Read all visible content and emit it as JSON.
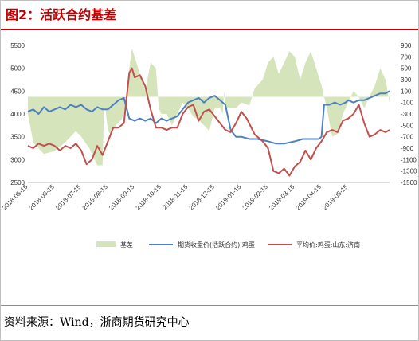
{
  "title": "图2：活跃合约基差",
  "source": "资料来源：Wind，浙商期货研究中心",
  "colors": {
    "title": "#c00000",
    "basis": "#d6e4bc",
    "futures": "#4f81bd",
    "spot": "#c0504d"
  },
  "chart_data": {
    "type": "line",
    "x_labels": [
      "2018-05-15",
      "2018-06-15",
      "2018-07-15",
      "2018-08-15",
      "2018-09-15",
      "2018-10-15",
      "2018-11-15",
      "2018-12-15",
      "2019-01-15",
      "2019-02-15",
      "2019-03-15",
      "2019-04-15",
      "2019-05-15"
    ],
    "x_range": [
      0,
      13.55
    ],
    "left_axis": {
      "min": 2500,
      "max": 5500,
      "ticks": [
        2500,
        3000,
        3500,
        4000,
        4500,
        5000,
        5500
      ]
    },
    "right_axis": {
      "min": -1500,
      "max": 900,
      "ticks": [
        -1500,
        -1300,
        -1100,
        -900,
        -700,
        -500,
        -300,
        -100,
        100,
        300,
        500,
        700,
        900
      ]
    },
    "series": [
      {
        "name": "基差",
        "type": "area",
        "axis": "right",
        "x": [
          0.0,
          0.2,
          0.4,
          0.6,
          1.0,
          1.4,
          1.8,
          2.0,
          2.3,
          2.6,
          2.8,
          2.85,
          2.9,
          3.0,
          3.1,
          3.3,
          3.5,
          3.7,
          3.8,
          3.9,
          4.0,
          4.2,
          4.4,
          4.6,
          4.8,
          4.9,
          5.0,
          5.2,
          5.4,
          5.6,
          5.8,
          6.0,
          6.2,
          6.4,
          6.6,
          6.8,
          7.0,
          7.2,
          7.3,
          7.35,
          7.4,
          7.6,
          7.8,
          8.0,
          8.3,
          8.5,
          8.6,
          8.8,
          9.0,
          9.2,
          9.4,
          9.6,
          9.8,
          10.0,
          10.2,
          10.4,
          10.6,
          10.8,
          11.0,
          11.2,
          11.4,
          11.6,
          11.8,
          12.0,
          12.2,
          12.4,
          12.6,
          12.8,
          13.0,
          13.2,
          13.4,
          13.55
        ],
        "y": [
          -300,
          -800,
          -900,
          -1000,
          -950,
          -800,
          -600,
          -700,
          -900,
          -1200,
          -1200,
          -200,
          -200,
          -600,
          -650,
          -500,
          -400,
          -200,
          500,
          850,
          700,
          400,
          100,
          600,
          500,
          -200,
          -300,
          -300,
          -500,
          -300,
          -100,
          -200,
          -350,
          -400,
          -500,
          -600,
          -200,
          -200,
          -300,
          100,
          -200,
          -200,
          -200,
          -100,
          -150,
          150,
          200,
          300,
          600,
          700,
          400,
          600,
          800,
          700,
          300,
          600,
          800,
          500,
          200,
          -200,
          -700,
          -650,
          -300,
          -100,
          100,
          0,
          -200,
          0,
          200,
          500,
          300,
          -100
        ]
      },
      {
        "name": "期货收盘价(活跃合约):鸡蛋",
        "type": "line",
        "axis": "left",
        "x": [
          0.0,
          0.2,
          0.4,
          0.6,
          0.8,
          1.0,
          1.2,
          1.4,
          1.6,
          1.8,
          2.0,
          2.2,
          2.4,
          2.6,
          2.8,
          3.0,
          3.2,
          3.4,
          3.6,
          3.8,
          4.0,
          4.2,
          4.4,
          4.6,
          4.8,
          5.0,
          5.2,
          5.4,
          5.6,
          5.8,
          6.0,
          6.2,
          6.4,
          6.6,
          6.8,
          7.0,
          7.2,
          7.4,
          7.6,
          7.8,
          8.0,
          8.3,
          8.6,
          9.0,
          9.3,
          9.6,
          10.0,
          10.3,
          10.6,
          10.9,
          11.0,
          11.1,
          11.3,
          11.5,
          11.7,
          11.9,
          12.0,
          12.2,
          12.4,
          12.6,
          12.8,
          13.0,
          13.2,
          13.4,
          13.55
        ],
        "y": [
          4050,
          4100,
          4000,
          4150,
          4050,
          4100,
          4150,
          4100,
          4200,
          4150,
          4200,
          4100,
          4050,
          4150,
          4100,
          4100,
          4200,
          4300,
          4350,
          3900,
          3850,
          3900,
          3850,
          3900,
          3800,
          3900,
          3850,
          3900,
          3950,
          4100,
          4250,
          4300,
          4350,
          4250,
          4350,
          4400,
          4300,
          4200,
          3650,
          3500,
          3500,
          3450,
          3450,
          3400,
          3350,
          3350,
          3400,
          3450,
          3450,
          3450,
          3500,
          4200,
          4200,
          4250,
          4200,
          4250,
          4300,
          4250,
          4300,
          4300,
          4350,
          4400,
          4450,
          4450,
          4500
        ]
      },
      {
        "name": "平均价:鸡蛋:山东:济南",
        "type": "line",
        "axis": "left",
        "x": [
          0.0,
          0.2,
          0.4,
          0.6,
          0.8,
          1.0,
          1.2,
          1.4,
          1.6,
          1.8,
          2.0,
          2.2,
          2.4,
          2.6,
          2.8,
          3.0,
          3.2,
          3.4,
          3.6,
          3.8,
          3.9,
          4.0,
          4.2,
          4.4,
          4.6,
          4.8,
          5.0,
          5.2,
          5.4,
          5.6,
          5.8,
          6.0,
          6.2,
          6.4,
          6.6,
          6.8,
          7.0,
          7.2,
          7.4,
          7.6,
          7.8,
          8.0,
          8.2,
          8.5,
          8.8,
          9.0,
          9.1,
          9.2,
          9.4,
          9.6,
          9.8,
          10.0,
          10.2,
          10.4,
          10.6,
          10.8,
          11.0,
          11.2,
          11.4,
          11.6,
          11.8,
          12.0,
          12.2,
          12.4,
          12.6,
          12.8,
          13.0,
          13.2,
          13.4,
          13.55
        ],
        "y": [
          3300,
          3250,
          3350,
          3300,
          3350,
          3300,
          3200,
          3300,
          3250,
          3350,
          3200,
          2900,
          3000,
          3300,
          3100,
          3400,
          3700,
          3700,
          3800,
          4900,
          5000,
          4800,
          4850,
          4600,
          4100,
          3700,
          3700,
          3650,
          3700,
          3700,
          4000,
          4150,
          4200,
          3850,
          4050,
          4100,
          3950,
          3800,
          3650,
          3600,
          3800,
          4050,
          3900,
          3550,
          3400,
          3250,
          3000,
          2750,
          2700,
          2800,
          2650,
          2850,
          2950,
          3200,
          3000,
          3250,
          3400,
          3600,
          3650,
          3600,
          3850,
          3900,
          4000,
          4200,
          3800,
          3500,
          3550,
          3650,
          3600,
          3650
        ]
      }
    ]
  }
}
